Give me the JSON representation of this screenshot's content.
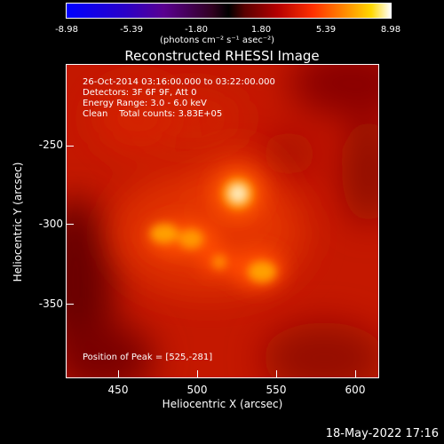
{
  "colorbar": {
    "ticks": [
      "-8.98",
      "-5.39",
      "-1.80",
      "1.80",
      "5.39",
      "8.98"
    ],
    "unit": "(photons cm⁻² s⁻¹ asec⁻²)"
  },
  "title": "Reconstructed RHESSI Image",
  "info": {
    "line1": "26-Oct-2014 03:16:00.000 to 03:22:00.000",
    "line2": "Detectors: 3F 6F 9F, Att 0",
    "line3": "Energy Range: 3.0 - 6.0 keV",
    "line4": "Clean    Total counts: 3.83E+05"
  },
  "peak": "Position of Peak = [525,-281]",
  "axes": {
    "xlabel": "Heliocentric X (arcsec)",
    "ylabel": "Heliocentric Y (arcsec)",
    "xticks": [
      "450",
      "500",
      "550",
      "600"
    ],
    "yticks": [
      "-250",
      "-300",
      "-350"
    ]
  },
  "date": "18-May-2022 17:16"
}
